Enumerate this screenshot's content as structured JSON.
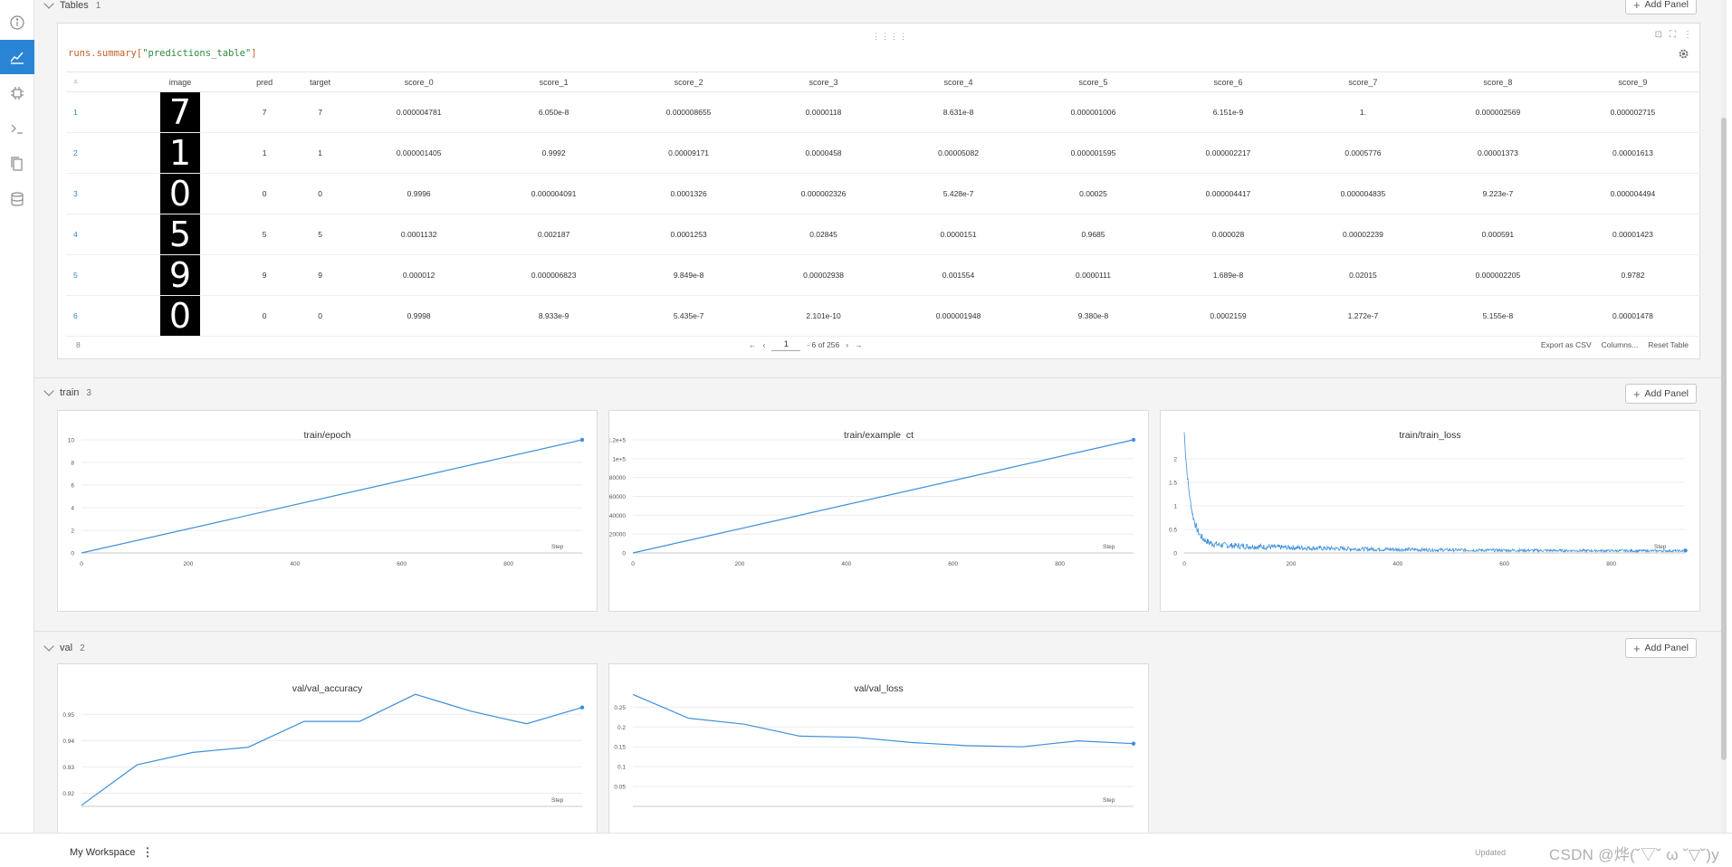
{
  "sidebar": {
    "items": [
      {
        "icon": "info-icon",
        "active": false
      },
      {
        "icon": "chart-icon",
        "active": true
      },
      {
        "icon": "chip-icon",
        "active": false
      },
      {
        "icon": "terminal-icon",
        "active": false
      },
      {
        "icon": "files-icon",
        "active": false
      },
      {
        "icon": "database-icon",
        "active": false
      }
    ]
  },
  "tables_section": {
    "title": "Tables",
    "count": "1",
    "add_panel_label": "Add Panel",
    "query_prefix": "runs.summary[",
    "query_key": "\"predictions_table\"",
    "query_suffix": "]",
    "columns": [
      "image",
      "pred",
      "target",
      "score_0",
      "score_1",
      "score_2",
      "score_3",
      "score_4",
      "score_5",
      "score_6",
      "score_7",
      "score_8",
      "score_9"
    ],
    "rows": [
      {
        "n": "1",
        "image": "7",
        "pred": "7",
        "target": "7",
        "scores": [
          "0.000004781",
          "6.050e-8",
          "0.000008655",
          "0.0000118",
          "8.631e-8",
          "0.000001006",
          "6.151e-9",
          "1.",
          "0.000002569",
          "0.000002715"
        ]
      },
      {
        "n": "2",
        "image": "1",
        "pred": "1",
        "target": "1",
        "scores": [
          "0.000001405",
          "0.9992",
          "0.00009171",
          "0.0000458",
          "0.00005082",
          "0.000001595",
          "0.000002217",
          "0.0005776",
          "0.00001373",
          "0.00001613"
        ]
      },
      {
        "n": "3",
        "image": "0",
        "pred": "0",
        "target": "0",
        "scores": [
          "0.9996",
          "0.000004091",
          "0.0001326",
          "0.000002326",
          "5.428e-7",
          "0.00025",
          "0.000004417",
          "0.000004835",
          "9.223e-7",
          "0.000004494"
        ]
      },
      {
        "n": "4",
        "image": "5",
        "pred": "5",
        "target": "5",
        "scores": [
          "0.0001132",
          "0.002187",
          "0.0001253",
          "0.02845",
          "0.0000151",
          "0.9685",
          "0.000028",
          "0.00002239",
          "0.000591",
          "0.00001423"
        ]
      },
      {
        "n": "5",
        "image": "9",
        "pred": "9",
        "target": "9",
        "scores": [
          "0.000012",
          "0.000006823",
          "9.849e-8",
          "0.00002938",
          "0.001554",
          "0.0000111",
          "1.689e-8",
          "0.02015",
          "0.000002205",
          "0.9782"
        ]
      },
      {
        "n": "6",
        "image": "0",
        "pred": "0",
        "target": "0",
        "scores": [
          "0.9998",
          "8.933e-9",
          "5.435e-7",
          "2.101e-10",
          "0.000001948",
          "9.380e-8",
          "0.0002159",
          "1.272e-7",
          "5.155e-8",
          "0.00001478"
        ]
      }
    ],
    "row_count": "8",
    "page_value": "1",
    "page_total": "- 6 of 256",
    "export_csv": "Export as CSV",
    "columns_btn": "Columns...",
    "reset_table": "Reset Table"
  },
  "train_section": {
    "title": "train",
    "count": "3",
    "add_panel_label": "Add Panel"
  },
  "val_section": {
    "title": "val",
    "count": "2",
    "add_panel_label": "Add Panel"
  },
  "chart_data": [
    {
      "type": "line",
      "title": "train/epoch",
      "xlabel": "Step",
      "x": [
        0,
        938
      ],
      "series": [
        {
          "values": [
            0,
            10
          ]
        }
      ],
      "xlim": [
        0,
        938
      ],
      "ylim": [
        0,
        10
      ],
      "xticks": [
        0,
        200,
        400,
        600,
        800
      ],
      "yticks": [
        0,
        2,
        4,
        6,
        8,
        10
      ],
      "ytick_labels": [
        "0",
        "2",
        "4",
        "6",
        "8",
        "10"
      ]
    },
    {
      "type": "line",
      "title": "train/example_ct",
      "xlabel": "Step",
      "x": [
        0,
        938
      ],
      "series": [
        {
          "values": [
            0,
            120000
          ]
        }
      ],
      "xlim": [
        0,
        938
      ],
      "ylim": [
        0,
        120000
      ],
      "xticks": [
        0,
        200,
        400,
        600,
        800
      ],
      "yticks": [
        0,
        20000,
        40000,
        60000,
        80000,
        100000,
        120000
      ],
      "ytick_labels": [
        "0",
        "20000",
        "40000",
        "60000",
        "80000",
        "1e+5",
        "1.2e+5"
      ]
    },
    {
      "type": "line",
      "title": "train/train_loss",
      "xlabel": "Step",
      "noisy_decay": {
        "start": 2.4,
        "floor": 0.04,
        "n_points": 940
      },
      "xlim": [
        0,
        938
      ],
      "ylim": [
        0,
        2.4
      ],
      "xticks": [
        0,
        200,
        400,
        600,
        800
      ],
      "yticks": [
        0,
        0.5,
        1,
        1.5,
        2
      ],
      "ytick_labels": [
        "0",
        "0.5",
        "1",
        "1.5",
        "2"
      ]
    },
    {
      "type": "line",
      "title": "val/val_accuracy",
      "xlabel": "Step",
      "x": [
        0,
        1,
        2,
        3,
        4,
        5,
        6,
        7,
        8,
        9
      ],
      "series": [
        {
          "values": [
            0.9154,
            0.9308,
            0.9355,
            0.9375,
            0.9473,
            0.9473,
            0.9576,
            0.9512,
            0.9464,
            0.9526
          ]
        }
      ],
      "xlim": [
        0,
        9
      ],
      "ylim": [
        0.915,
        0.958
      ],
      "yticks": [
        0.92,
        0.93,
        0.94,
        0.95
      ],
      "ytick_labels": [
        "0.92",
        "0.93",
        "0.94",
        "0.95"
      ]
    },
    {
      "type": "line",
      "title": "val/val_loss",
      "xlabel": "Step",
      "x": [
        0,
        1,
        2,
        3,
        4,
        5,
        6,
        7,
        8,
        9
      ],
      "series": [
        {
          "values": [
            0.282,
            0.222,
            0.207,
            0.177,
            0.174,
            0.161,
            0.153,
            0.15,
            0.165,
            0.158
          ]
        }
      ],
      "xlim": [
        0,
        9
      ],
      "ylim": [
        0.0,
        0.285
      ],
      "yticks": [
        0.05,
        0.1,
        0.15,
        0.2,
        0.25
      ],
      "ytick_labels": [
        "0.05",
        "0.1",
        "0.15",
        "0.2",
        "0.25"
      ]
    }
  ],
  "footer": {
    "workspace_label": "My Workspace",
    "updated_text": "Updated",
    "watermark": "CSDN @烨(˘▽˘ ω ˘▽˘)y"
  },
  "colors": {
    "accent": "#2a84d6",
    "line": "#3f8fd9"
  }
}
